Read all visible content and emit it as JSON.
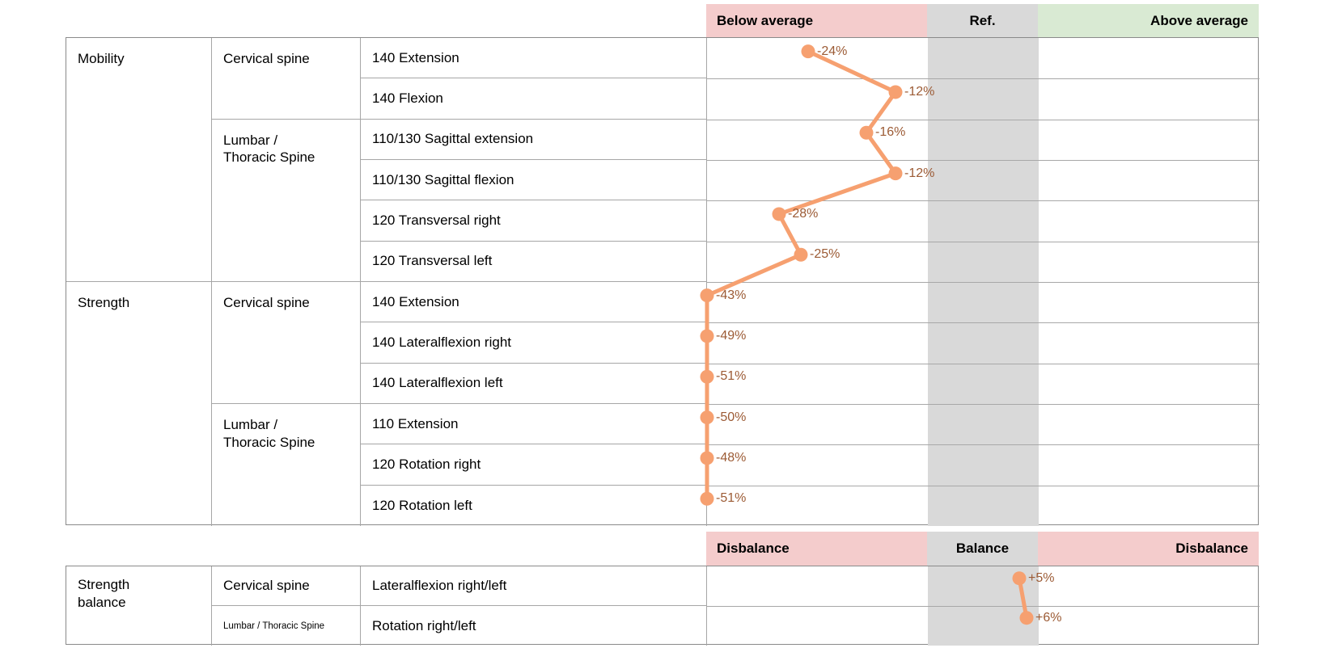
{
  "main": {
    "header": {
      "below_label": "Below average",
      "ref_label": "Ref.",
      "above_label": "Above average"
    },
    "groups": [
      {
        "category": "Mobility",
        "regions": [
          {
            "name": "Cervical spine"
          },
          {
            "name": "Lumbar / Thoracic Spine"
          }
        ]
      },
      {
        "category": "Strength",
        "regions": [
          {
            "name": "Cervical spine"
          },
          {
            "name": "Lumbar / Thoracic Spine"
          }
        ]
      }
    ],
    "measurements": [
      "140 Extension",
      "140 Flexion",
      "110/130 Sagittal extension",
      "110/130 Sagittal flexion",
      "120 Transversal right",
      "120 Transversal left",
      "140 Extension",
      "140 Lateralflexion right",
      "140 Lateralflexion left",
      "110 Extension",
      "120 Rotation right",
      "120 Rotation left"
    ]
  },
  "balance": {
    "header": {
      "left_label": "Disbalance",
      "center_label": "Balance",
      "right_label": "Disbalance"
    },
    "category": "Strength balance",
    "rows": [
      {
        "region": "Cervical spine",
        "measurement": "Lateralflexion right/left"
      },
      {
        "region": "Lumbar / Thoracic Spine",
        "measurement": "Rotation right/left"
      }
    ]
  },
  "chart_data": {
    "type": "line",
    "unit": "%",
    "zones_main": [
      "Below average",
      "Ref.",
      "Above average"
    ],
    "zones_balance": [
      "Disbalance",
      "Balance",
      "Disbalance"
    ],
    "x_range_pct": [
      -38,
      38
    ],
    "ref_band_pct": [
      -7.6,
      7.6
    ],
    "values_clamped_at_left_edge": true,
    "series": [
      {
        "name": "deviation-from-reference",
        "categories": [
          "140 Extension",
          "140 Flexion",
          "110/130 Sagittal extension",
          "110/130 Sagittal flexion",
          "120 Transversal right",
          "120 Transversal left",
          "140 Extension",
          "140 Lateralflexion right",
          "140 Lateralflexion left",
          "110 Extension",
          "120 Rotation right",
          "120 Rotation left"
        ],
        "values": [
          -24,
          -12,
          -16,
          -12,
          -28,
          -25,
          -43,
          -49,
          -51,
          -50,
          -48,
          -51
        ],
        "labels": [
          "-24%",
          "-12%",
          "-16%",
          "-12%",
          "-28%",
          "-25%",
          "-43%",
          "-49%",
          "-51%",
          "-50%",
          "-48%",
          "-51%"
        ]
      },
      {
        "name": "strength-balance",
        "categories": [
          "Lateralflexion right/left",
          "Rotation right/left"
        ],
        "values": [
          5,
          6
        ],
        "labels": [
          "+5%",
          "+6%"
        ]
      }
    ]
  },
  "colors": {
    "below_band": "#F4CCCC",
    "ref_band": "#D9D9D9",
    "above_band": "#D9EAD3",
    "line": "#F6A070",
    "value_label": "#9C5B35"
  }
}
